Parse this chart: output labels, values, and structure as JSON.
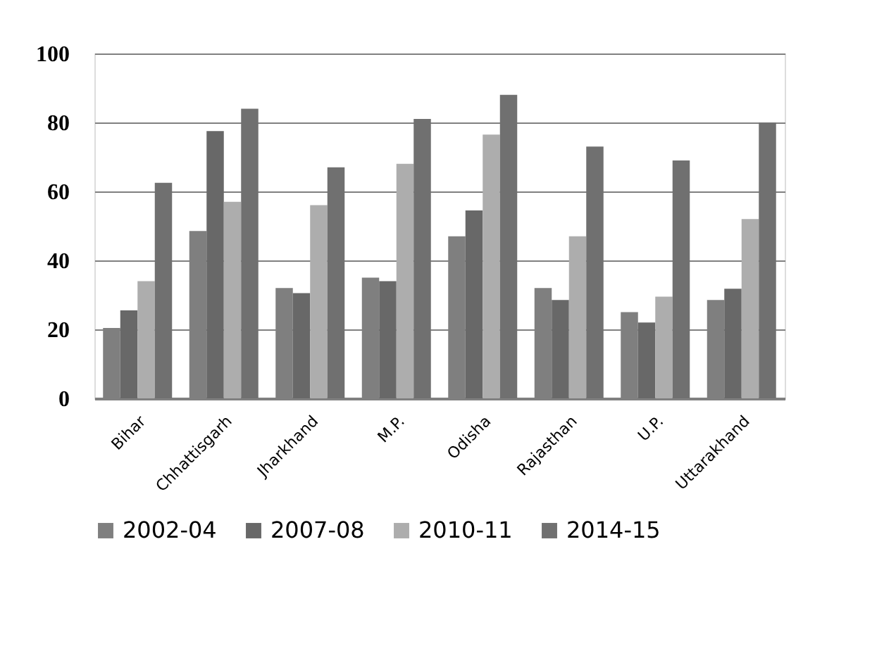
{
  "chart_data": {
    "type": "bar",
    "categories": [
      "Bihar",
      "Chhattisgarh",
      "Jharkhand",
      "M.P.",
      "Odisha",
      "Rajasthan",
      "U.P.",
      "Uttarakhand"
    ],
    "series": [
      {
        "name": "2002-04",
        "color": "#7f7f7f",
        "values": [
          20.4,
          48.5,
          32,
          35,
          47,
          32,
          25,
          28.5
        ]
      },
      {
        "name": "2007-08",
        "color": "#686868",
        "values": [
          25.5,
          77.5,
          30.5,
          34,
          54.5,
          28.5,
          22,
          31.8
        ]
      },
      {
        "name": "2010-11",
        "color": "#adadad",
        "values": [
          34,
          57,
          56,
          68,
          76.5,
          47,
          29.5,
          52
        ]
      },
      {
        "name": "2014-15",
        "color": "#707070",
        "values": [
          62.5,
          84,
          67,
          81,
          88,
          73,
          69,
          80
        ]
      }
    ],
    "ylim": [
      0,
      100
    ],
    "yticks": [
      0,
      20,
      40,
      60,
      80,
      100
    ],
    "grid": "y",
    "legend": "bottom"
  }
}
